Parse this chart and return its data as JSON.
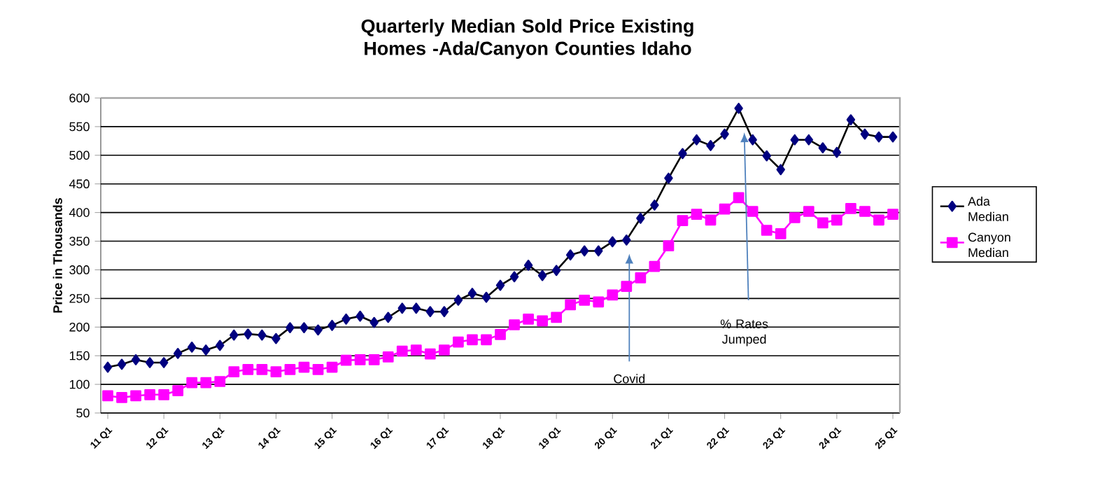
{
  "chart_data": {
    "type": "line",
    "title": "Quarterly Median Sold Price Existing Homes -Ada/Canyon Counties Idaho",
    "ylabel": "Price in Thousands",
    "categories": [
      "11 Q1",
      null,
      null,
      null,
      "12 Q1",
      null,
      null,
      null,
      "13 Q1",
      null,
      null,
      null,
      "14 Q1",
      null,
      null,
      null,
      "15 Q1",
      null,
      null,
      null,
      "16 Q1",
      null,
      null,
      null,
      "17 Q1",
      null,
      null,
      null,
      "18 Q1",
      null,
      null,
      null,
      "19 Q1",
      null,
      null,
      null,
      "20 Q1",
      null,
      null,
      null,
      "21 Q1",
      null,
      null,
      null,
      "22 Q1",
      null,
      null,
      null,
      "23 Q1",
      null,
      null,
      null,
      "24 Q1",
      null,
      null,
      null,
      "25 Q1"
    ],
    "series": [
      {
        "name": "Ada Median",
        "color": "#000080",
        "marker": "diamond",
        "values": [
          130,
          135,
          143,
          138,
          138,
          154,
          165,
          160,
          168,
          186,
          188,
          186,
          180,
          199,
          199,
          195,
          203,
          214,
          219,
          208,
          217,
          233,
          233,
          227,
          227,
          247,
          259,
          252,
          273,
          288,
          308,
          290,
          299,
          326,
          333,
          333,
          349,
          352,
          390,
          413,
          460,
          503,
          527,
          517,
          537,
          582,
          527,
          499,
          475,
          527,
          527,
          513,
          505,
          562,
          537,
          532,
          532
        ]
      },
      {
        "name": "Canyon Median",
        "color": "#ff00ff",
        "marker": "square",
        "values": [
          80,
          77,
          80,
          82,
          82,
          89,
          103,
          103,
          105,
          122,
          126,
          126,
          122,
          126,
          130,
          126,
          130,
          142,
          143,
          143,
          148,
          158,
          160,
          153,
          160,
          174,
          178,
          178,
          187,
          204,
          214,
          211,
          217,
          239,
          247,
          244,
          256,
          271,
          286,
          306,
          342,
          386,
          397,
          387,
          406,
          426,
          402,
          369,
          363,
          391,
          402,
          382,
          387,
          407,
          402,
          387,
          397
        ]
      }
    ],
    "ylim": [
      50,
      600
    ],
    "yticks": [
      50,
      100,
      150,
      200,
      250,
      300,
      350,
      400,
      450,
      500,
      550,
      600
    ],
    "grid": "y",
    "legend": "right",
    "annotations": [
      "Covid",
      "% Rates Jumped"
    ]
  }
}
